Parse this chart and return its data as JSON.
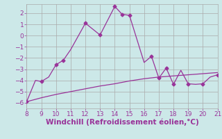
{
  "xlabel": "Windchill (Refroidissement éolien,°C)",
  "xlim": [
    8,
    21
  ],
  "ylim": [
    -6.5,
    2.8
  ],
  "xticks": [
    8,
    9,
    10,
    11,
    12,
    13,
    14,
    15,
    16,
    17,
    18,
    19,
    20,
    21
  ],
  "yticks": [
    -6,
    -5,
    -4,
    -3,
    -2,
    -1,
    0,
    1,
    2
  ],
  "line1_x": [
    8,
    8.6,
    9,
    9.5,
    10,
    10.5,
    11,
    12,
    13,
    14,
    14.5,
    15,
    16,
    16.5,
    17,
    17.5,
    18,
    18.5,
    19,
    19.5,
    20,
    20.5,
    21
  ],
  "line1_y": [
    -5.9,
    -4.0,
    -4.1,
    -3.7,
    -2.6,
    -2.2,
    -1.25,
    1.1,
    0.05,
    2.6,
    1.9,
    1.8,
    -2.4,
    -1.85,
    -3.8,
    -2.9,
    -4.35,
    -3.1,
    -4.3,
    -4.35,
    -4.3,
    -3.7,
    -3.5
  ],
  "line2_x": [
    8,
    9,
    10,
    11,
    12,
    13,
    14,
    15,
    16,
    17,
    18,
    19,
    20,
    21
  ],
  "line2_y": [
    -5.9,
    -5.55,
    -5.25,
    -5.0,
    -4.75,
    -4.5,
    -4.3,
    -4.05,
    -3.85,
    -3.7,
    -3.6,
    -3.5,
    -3.4,
    -3.3
  ],
  "line_color": "#993399",
  "bg_color": "#cce8e8",
  "grid_color": "#aaaaaa",
  "tick_color": "#993399",
  "xlabel_color": "#993399",
  "marker_x1": [
    8,
    9,
    10,
    10.5,
    12,
    13,
    14,
    14.5,
    15,
    16.5,
    17,
    17.5,
    18,
    19,
    20,
    21
  ],
  "marker_y1": [
    -5.9,
    -4.1,
    -2.6,
    -2.2,
    1.1,
    0.05,
    2.6,
    1.9,
    1.8,
    -1.85,
    -3.8,
    -2.9,
    -4.35,
    -4.3,
    -4.3,
    -3.5
  ],
  "tick_fontsize": 6.5,
  "xlabel_fontsize": 7.5
}
